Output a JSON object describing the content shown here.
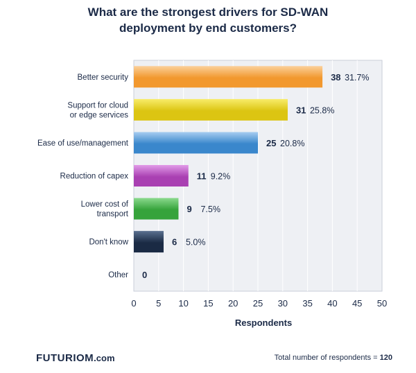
{
  "title_lines": [
    "What are the strongest drivers for SD-WAN",
    "deployment by end customers?"
  ],
  "footer": {
    "brand": "FUTURIOM",
    "brand_suffix": ".com",
    "total_label": "Total number of respondents =",
    "total_value": "120"
  },
  "colors": {
    "title": "#1b2a47",
    "plot_background": "#eef0f4",
    "grid": "#ffffff",
    "text": "#1b2a47"
  },
  "chart_data": {
    "type": "bar",
    "orientation": "horizontal",
    "title": "What are the strongest drivers for SD-WAN deployment by end customers?",
    "xlabel": "Respondents",
    "ylabel": "",
    "xlim": [
      0,
      50
    ],
    "xticks": [
      0,
      5,
      10,
      15,
      20,
      25,
      30,
      35,
      40,
      45,
      50
    ],
    "grid": true,
    "categories": [
      [
        "Better security"
      ],
      [
        "Support for cloud",
        "or edge services"
      ],
      [
        "Ease of use/management"
      ],
      [
        "Reduction of capex"
      ],
      [
        "Lower cost of",
        "transport"
      ],
      [
        "Don't know"
      ],
      [
        "Other"
      ]
    ],
    "values": [
      38,
      31,
      25,
      11,
      9,
      6,
      0
    ],
    "percent_labels": [
      "31.7%",
      "25.8%",
      "20.8%",
      "9.2%",
      "7.5%",
      "5.0%",
      ""
    ],
    "bar_colors": [
      [
        "#fbd09a",
        "#f2982e"
      ],
      [
        "#f8ec6a",
        "#dcc512"
      ],
      [
        "#a7cdf0",
        "#3a87cc"
      ],
      [
        "#e19be8",
        "#a940b2"
      ],
      [
        "#8bd98d",
        "#36a33b"
      ],
      [
        "#5a7090",
        "#1a2a44"
      ],
      [
        "#cccccc",
        "#999999"
      ]
    ]
  }
}
